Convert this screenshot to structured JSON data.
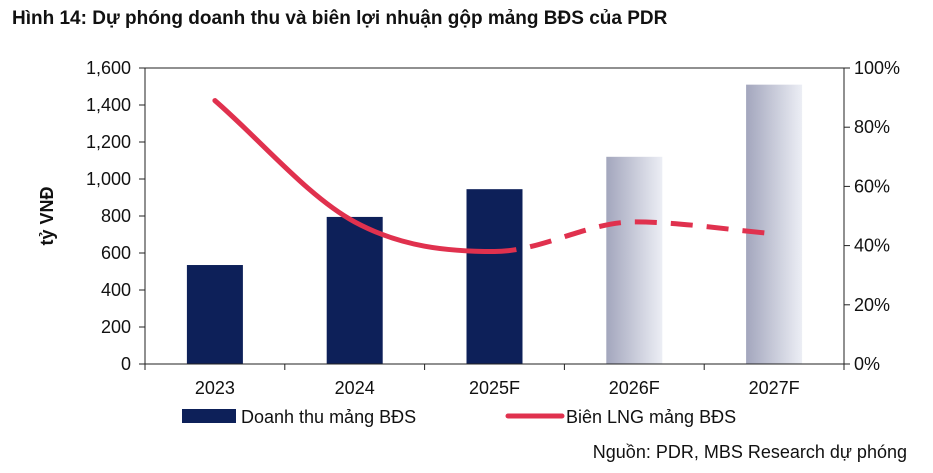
{
  "figure_title": "Hình 14: Dự phóng doanh thu và biên lợi nhuận gộp mảng BĐS của PDR",
  "source": "Nguồn: PDR, MBS Research dự phóng",
  "colors": {
    "bar_actual": "#0d2059",
    "bar_forecast_dark": "#a3a6bd",
    "bar_forecast_light": "#eceef5",
    "line": "#e0314e"
  },
  "chart_data": {
    "type": "bar",
    "categories": [
      "2023",
      "2024",
      "2025F",
      "2026F",
      "2027F"
    ],
    "series": [
      {
        "name": "Doanh thu mảng BĐS",
        "type": "bar",
        "axis": "left",
        "values": [
          535,
          795,
          945,
          1120,
          1510
        ],
        "forecast": [
          false,
          false,
          false,
          true,
          true
        ]
      },
      {
        "name": "Biên LNG mảng BĐS",
        "type": "line",
        "axis": "right",
        "values": [
          0.89,
          0.48,
          0.38,
          0.48,
          0.44
        ],
        "forecast_from_index": 2
      }
    ],
    "ylabel": "tỷ VNĐ",
    "ylim": [
      0,
      1600
    ],
    "yticks": [
      0,
      200,
      400,
      600,
      800,
      1000,
      1200,
      1400,
      1600
    ],
    "ytick_labels": [
      "0",
      "200",
      "400",
      "600",
      "800",
      "1,000",
      "1,200",
      "1,400",
      "1,600"
    ],
    "y2lim": [
      0,
      1
    ],
    "y2ticks": [
      0,
      0.2,
      0.4,
      0.6,
      0.8,
      1.0
    ],
    "y2tick_labels": [
      "0%",
      "20%",
      "40%",
      "60%",
      "80%",
      "100%"
    ],
    "legend_position": "bottom"
  }
}
